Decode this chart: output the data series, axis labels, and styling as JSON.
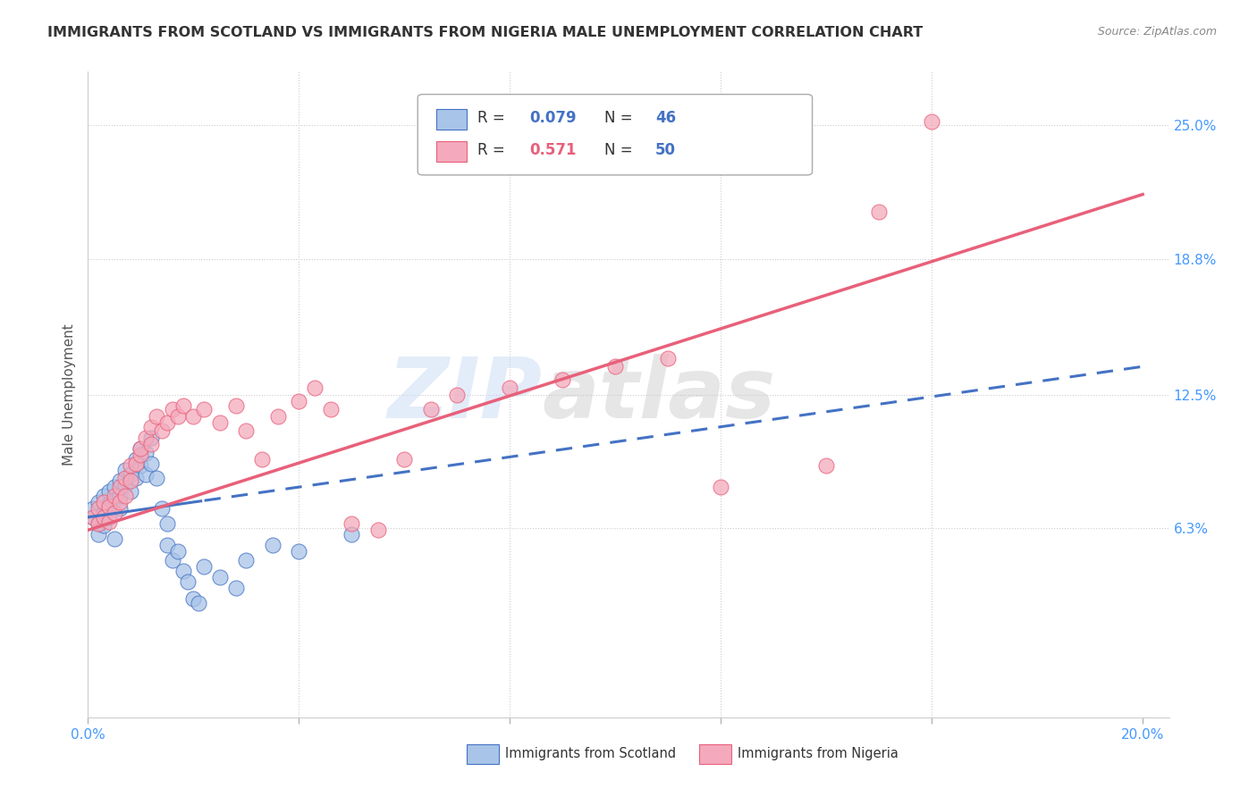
{
  "title": "IMMIGRANTS FROM SCOTLAND VS IMMIGRANTS FROM NIGERIA MALE UNEMPLOYMENT CORRELATION CHART",
  "source": "Source: ZipAtlas.com",
  "ylabel": "Male Unemployment",
  "xlim": [
    0.0,
    0.205
  ],
  "ylim": [
    -0.025,
    0.275
  ],
  "yticks": [
    0.063,
    0.125,
    0.188,
    0.25
  ],
  "ytick_labels": [
    "6.3%",
    "12.5%",
    "18.8%",
    "25.0%"
  ],
  "xtick_labels": [
    "0.0%",
    "20.0%"
  ],
  "xtick_positions": [
    0.0,
    0.2
  ],
  "grid_color": "#cccccc",
  "background_color": "#ffffff",
  "watermark1": "ZIP",
  "watermark2": "atlas",
  "scotland": {
    "color": "#a8c4e8",
    "R": 0.079,
    "N": 46,
    "label": "Immigrants from Scotland",
    "trend_color": "#4472c4",
    "x": [
      0.001,
      0.001,
      0.002,
      0.002,
      0.002,
      0.003,
      0.003,
      0.003,
      0.004,
      0.004,
      0.004,
      0.005,
      0.005,
      0.005,
      0.006,
      0.006,
      0.006,
      0.007,
      0.007,
      0.008,
      0.008,
      0.009,
      0.009,
      0.01,
      0.01,
      0.011,
      0.011,
      0.012,
      0.012,
      0.013,
      0.014,
      0.015,
      0.015,
      0.016,
      0.017,
      0.018,
      0.019,
      0.02,
      0.021,
      0.022,
      0.025,
      0.028,
      0.03,
      0.035,
      0.04,
      0.05
    ],
    "y": [
      0.068,
      0.072,
      0.075,
      0.065,
      0.06,
      0.078,
      0.07,
      0.064,
      0.08,
      0.074,
      0.068,
      0.082,
      0.076,
      0.058,
      0.085,
      0.078,
      0.072,
      0.09,
      0.083,
      0.088,
      0.08,
      0.095,
      0.086,
      0.1,
      0.092,
      0.098,
      0.088,
      0.105,
      0.093,
      0.086,
      0.072,
      0.065,
      0.055,
      0.048,
      0.052,
      0.043,
      0.038,
      0.03,
      0.028,
      0.045,
      0.04,
      0.035,
      0.048,
      0.055,
      0.052,
      0.06
    ]
  },
  "nigeria": {
    "color": "#f4aabc",
    "R": 0.571,
    "N": 50,
    "label": "Immigrants from Nigeria",
    "trend_color": "#e8607a",
    "x": [
      0.001,
      0.002,
      0.002,
      0.003,
      0.003,
      0.004,
      0.004,
      0.005,
      0.005,
      0.006,
      0.006,
      0.007,
      0.007,
      0.008,
      0.008,
      0.009,
      0.01,
      0.01,
      0.011,
      0.012,
      0.012,
      0.013,
      0.014,
      0.015,
      0.016,
      0.017,
      0.018,
      0.02,
      0.022,
      0.025,
      0.028,
      0.03,
      0.033,
      0.036,
      0.04,
      0.043,
      0.046,
      0.05,
      0.055,
      0.06,
      0.065,
      0.07,
      0.08,
      0.09,
      0.1,
      0.11,
      0.12,
      0.14,
      0.15,
      0.16
    ],
    "y": [
      0.068,
      0.072,
      0.065,
      0.075,
      0.068,
      0.073,
      0.066,
      0.078,
      0.07,
      0.082,
      0.075,
      0.086,
      0.078,
      0.092,
      0.085,
      0.093,
      0.097,
      0.1,
      0.105,
      0.11,
      0.102,
      0.115,
      0.108,
      0.112,
      0.118,
      0.115,
      0.12,
      0.115,
      0.118,
      0.112,
      0.12,
      0.108,
      0.095,
      0.115,
      0.122,
      0.128,
      0.118,
      0.065,
      0.062,
      0.095,
      0.118,
      0.125,
      0.128,
      0.132,
      0.138,
      0.142,
      0.082,
      0.092,
      0.21,
      0.252
    ]
  },
  "legend_box_color": "#ffffff",
  "legend_border_color": "#aaaaaa",
  "title_color": "#333333",
  "title_fontsize": 11.5,
  "axis_label_fontsize": 11,
  "tick_fontsize": 11,
  "source_fontsize": 9,
  "R_color_scotland": "#4472c4",
  "R_color_nigeria": "#e8607a",
  "N_color": "#4472c4",
  "trend_line_intercept_scot": 0.068,
  "trend_line_slope_scot": 0.35,
  "trend_line_intercept_nig": 0.062,
  "trend_line_slope_nig": 0.78
}
